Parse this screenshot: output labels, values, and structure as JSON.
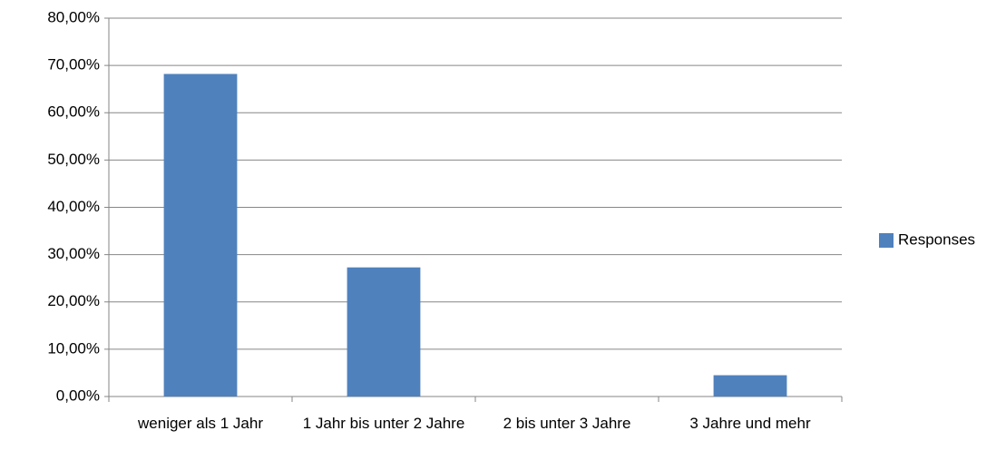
{
  "chart_data": {
    "type": "bar",
    "categories": [
      "weniger als 1 Jahr",
      "1 Jahr bis unter 2 Jahre",
      "2 bis unter 3 Jahre",
      "3 Jahre und mehr"
    ],
    "series": [
      {
        "name": "Responses",
        "color": "#4f81bd",
        "values": [
          68.2,
          27.3,
          0,
          4.5
        ]
      }
    ],
    "ylim": [
      0,
      80
    ],
    "yticks": [
      {
        "value": 0,
        "label": "0,00%"
      },
      {
        "value": 10,
        "label": "10,00%"
      },
      {
        "value": 20,
        "label": "20,00%"
      },
      {
        "value": 30,
        "label": "30,00%"
      },
      {
        "value": 40,
        "label": "40,00%"
      },
      {
        "value": 50,
        "label": "50,00%"
      },
      {
        "value": 60,
        "label": "60,00%"
      },
      {
        "value": 70,
        "label": "70,00%"
      },
      {
        "value": 80,
        "label": "80,00%"
      }
    ],
    "grid": true,
    "legend": "right"
  }
}
